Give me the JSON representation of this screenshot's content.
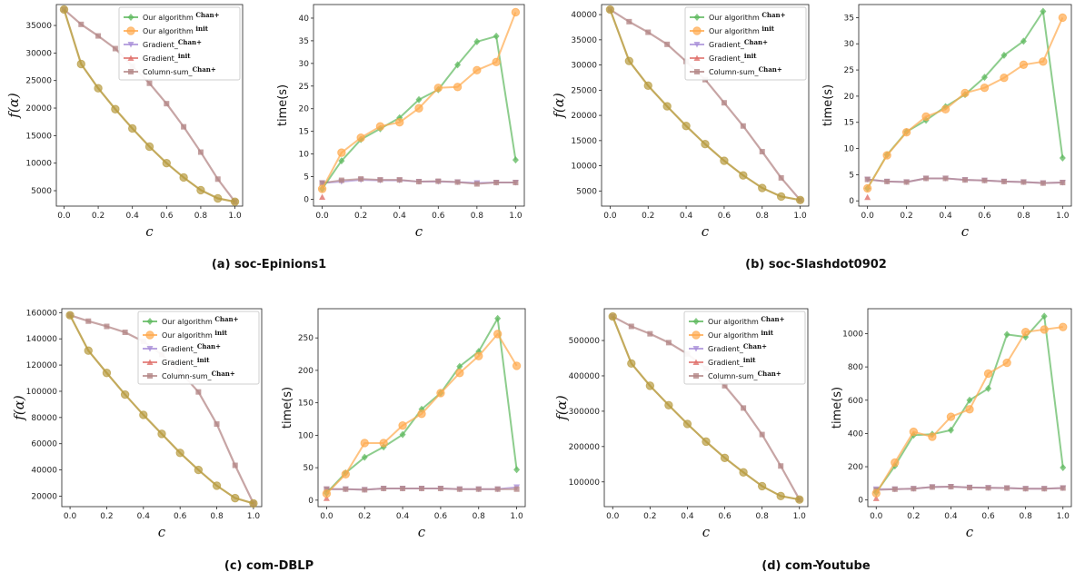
{
  "chart_data": [
    {
      "panel": "a",
      "caption": "(a) soc-Epinions1",
      "f_plot": {
        "type": "line",
        "ylabel": "f(α)",
        "xlabel": "c",
        "ylim": [
          2200,
          38800
        ],
        "yticks": [
          5000,
          10000,
          15000,
          20000,
          25000,
          30000,
          35000
        ],
        "x": [
          0,
          0.1,
          0.2,
          0.3,
          0.4,
          0.5,
          0.6,
          0.7,
          0.8,
          0.9,
          1.0
        ],
        "series": [
          {
            "name": "Our algorithm",
            "values": [
              37900,
              28000,
              23600,
              19800,
              16300,
              13000,
              10000,
              7400,
              5100,
              3600,
              3000
            ]
          },
          {
            "name": "Column-sum",
            "values": [
              37900,
              35200,
              33100,
              30800,
              27600,
              24500,
              20800,
              16600,
              12000,
              7100,
              3000
            ]
          }
        ]
      },
      "time_plot": {
        "type": "line",
        "ylabel": "time(s)",
        "xlabel": "c",
        "ylim": [
          -1.5,
          43
        ],
        "yticks": [
          0,
          5,
          10,
          15,
          20,
          25,
          30,
          35,
          40
        ],
        "x": [
          0,
          0.1,
          0.2,
          0.3,
          0.4,
          0.5,
          0.6,
          0.7,
          0.8,
          0.9,
          1.0
        ],
        "series": [
          {
            "name": "Our algorithm Chan+",
            "values": [
              2.3,
              8.5,
              13.2,
              15.6,
              18.0,
              22.0,
              24.2,
              29.7,
              34.8,
              36.0,
              8.7
            ]
          },
          {
            "name": "Our algorithm init",
            "values": [
              2.3,
              10.3,
              13.6,
              16.1,
              17.0,
              20.1,
              24.6,
              24.8,
              28.5,
              30.3,
              41.3
            ]
          },
          {
            "name": "Gradient Chan+",
            "values": [
              3.6,
              3.9,
              4.3,
              4.2,
              4.2,
              3.9,
              3.9,
              3.8,
              3.6,
              3.7,
              3.7
            ]
          },
          {
            "name": "Gradient init",
            "values": [
              0.5
            ]
          },
          {
            "name": "Column-sum Chan+",
            "values": [
              3.6,
              4.2,
              4.5,
              4.3,
              4.3,
              3.9,
              4.0,
              3.8,
              3.4,
              3.7,
              3.7
            ]
          }
        ]
      }
    },
    {
      "panel": "b",
      "caption": "(b) soc-Slashdot0902",
      "f_plot": {
        "type": "line",
        "ylabel": "f(α)",
        "xlabel": "c",
        "ylim": [
          2000,
          42000
        ],
        "yticks": [
          5000,
          10000,
          15000,
          20000,
          25000,
          30000,
          35000,
          40000
        ],
        "x": [
          0,
          0.1,
          0.2,
          0.3,
          0.4,
          0.5,
          0.6,
          0.7,
          0.8,
          0.9,
          1.0
        ],
        "series": [
          {
            "name": "Our algorithm",
            "values": [
              41000,
              30800,
              25900,
              21800,
              17900,
              14300,
              11000,
              8100,
              5600,
              3900,
              3200
            ]
          },
          {
            "name": "Column-sum",
            "values": [
              41000,
              38600,
              36500,
              34100,
              30700,
              27100,
              22500,
              17900,
              12800,
              7600,
              3200
            ]
          }
        ]
      },
      "time_plot": {
        "type": "line",
        "ylabel": "time(s)",
        "xlabel": "c",
        "ylim": [
          -1,
          37.5
        ],
        "yticks": [
          0,
          5,
          10,
          15,
          20,
          25,
          30,
          35
        ],
        "x": [
          0,
          0.1,
          0.2,
          0.3,
          0.4,
          0.5,
          0.6,
          0.7,
          0.8,
          0.9,
          1.0
        ],
        "series": [
          {
            "name": "Our algorithm Chan+",
            "values": [
              2.4,
              8.8,
              13.2,
              15.4,
              18.0,
              20.3,
              23.6,
              27.8,
              30.5,
              36.2,
              8.2
            ]
          },
          {
            "name": "Our algorithm init",
            "values": [
              2.4,
              8.7,
              13.1,
              16.1,
              17.5,
              20.6,
              21.6,
              23.5,
              26.0,
              26.6,
              35.0
            ]
          },
          {
            "name": "Gradient Chan+",
            "values": [
              4.1,
              3.7,
              3.6,
              4.3,
              4.3,
              4.0,
              3.9,
              3.7,
              3.6,
              3.4,
              3.5
            ]
          },
          {
            "name": "Gradient init",
            "values": [
              0.7
            ]
          },
          {
            "name": "Column-sum Chan+",
            "values": [
              4.1,
              3.7,
              3.6,
              4.3,
              4.3,
              4.0,
              3.9,
              3.7,
              3.6,
              3.4,
              3.5
            ]
          }
        ]
      }
    },
    {
      "panel": "c",
      "caption": "(c) com-DBLP",
      "f_plot": {
        "type": "line",
        "ylabel": "f(α)",
        "xlabel": "c",
        "ylim": [
          12000,
          163000
        ],
        "yticks": [
          20000,
          40000,
          60000,
          80000,
          100000,
          120000,
          140000,
          160000
        ],
        "x": [
          0,
          0.1,
          0.2,
          0.3,
          0.4,
          0.5,
          0.6,
          0.7,
          0.8,
          0.9,
          1.0
        ],
        "series": [
          {
            "name": "Our algorithm",
            "values": [
              158000,
              131000,
              114000,
              97500,
              82000,
              67500,
              53000,
              40000,
              28000,
              18500,
              14500
            ]
          },
          {
            "name": "Column-sum",
            "values": [
              158000,
              153500,
              149500,
              145000,
              138000,
              128000,
              115000,
              99500,
              75000,
              43500,
              14500
            ]
          }
        ]
      },
      "time_plot": {
        "type": "line",
        "ylabel": "time(s)",
        "xlabel": "c",
        "ylim": [
          -10,
          295
        ],
        "yticks": [
          0,
          50,
          100,
          150,
          200,
          250
        ],
        "x": [
          0,
          0.1,
          0.2,
          0.3,
          0.4,
          0.5,
          0.6,
          0.7,
          0.8,
          0.9,
          1.0
        ],
        "series": [
          {
            "name": "Our algorithm Chan+",
            "values": [
              11,
              42,
              66,
              82,
              101,
              140,
              165,
              206,
              229,
              280,
              47
            ]
          },
          {
            "name": "Our algorithm init",
            "values": [
              10,
              40,
              88,
              88,
              115,
              133,
              165,
              196,
              222,
              256,
              207
            ]
          },
          {
            "name": "Gradient Chan+",
            "values": [
              17,
              17,
              16,
              18,
              18,
              18,
              18,
              17,
              17,
              17,
              20
            ]
          },
          {
            "name": "Gradient init",
            "values": [
              3
            ]
          },
          {
            "name": "Column-sum Chan+",
            "values": [
              17,
              17,
              16,
              18,
              18,
              18,
              18,
              17,
              17,
              17,
              17
            ]
          }
        ]
      }
    },
    {
      "panel": "d",
      "caption": "(d) com-Youtube",
      "f_plot": {
        "type": "line",
        "ylabel": "f(α)",
        "xlabel": "c",
        "ylim": [
          30000,
          590000
        ],
        "yticks": [
          100000,
          200000,
          300000,
          400000,
          500000
        ],
        "x": [
          0,
          0.1,
          0.2,
          0.3,
          0.4,
          0.5,
          0.6,
          0.7,
          0.8,
          0.9,
          1.0
        ],
        "series": [
          {
            "name": "Our algorithm",
            "values": [
              568000,
              435000,
              372000,
              317000,
              264000,
              214000,
              168000,
              127000,
              88000,
              60000,
              50000
            ]
          },
          {
            "name": "Column-sum",
            "values": [
              568000,
              540000,
              519000,
              494000,
              462000,
              421000,
              372000,
              309000,
              234000,
              145000,
              50000
            ]
          }
        ]
      },
      "time_plot": {
        "type": "line",
        "ylabel": "time(s)",
        "xlabel": "c",
        "ylim": [
          -40,
          1150
        ],
        "yticks": [
          0,
          200,
          400,
          600,
          800,
          1000
        ],
        "x": [
          0,
          0.1,
          0.2,
          0.3,
          0.4,
          0.5,
          0.6,
          0.7,
          0.8,
          0.9,
          1.0
        ],
        "series": [
          {
            "name": "Our algorithm Chan+",
            "values": [
              45,
              205,
              390,
              395,
              420,
              600,
              670,
              995,
              980,
              1105,
              195
            ]
          },
          {
            "name": "Our algorithm init",
            "values": [
              40,
              225,
              410,
              380,
              500,
              545,
              760,
              825,
              1010,
              1025,
              1040
            ]
          },
          {
            "name": "Gradient Chan+",
            "values": [
              65,
              65,
              68,
              78,
              80,
              75,
              73,
              72,
              68,
              68,
              72
            ]
          },
          {
            "name": "Gradient init",
            "values": [
              10
            ]
          },
          {
            "name": "Column-sum Chan+",
            "values": [
              60,
              65,
              68,
              78,
              80,
              75,
              73,
              72,
              68,
              68,
              72
            ]
          }
        ]
      }
    }
  ],
  "legend": {
    "placement": "top-right of f(α) plot",
    "entries": [
      {
        "text": "Our algorithm ",
        "sup": "Chan+",
        "color": "#5cb85c"
      },
      {
        "text": "Our algorithm ",
        "sup": "init",
        "color": "#ffa94d"
      },
      {
        "text": "Gradient_",
        "sup": "Chan+",
        "color": "#a98fd8"
      },
      {
        "text": "Gradient_",
        "sup": "init",
        "color": "#e0706c"
      },
      {
        "text": "Column-sum_",
        "sup": "Chan+",
        "color": "#b48787"
      }
    ]
  },
  "colors": {
    "our_chan": "#5cb85c",
    "our_init": "#ffa94d",
    "grad_chan": "#a98fd8",
    "grad_init": "#e0706c",
    "colsum": "#b48787",
    "f_line": "#b89b40"
  }
}
